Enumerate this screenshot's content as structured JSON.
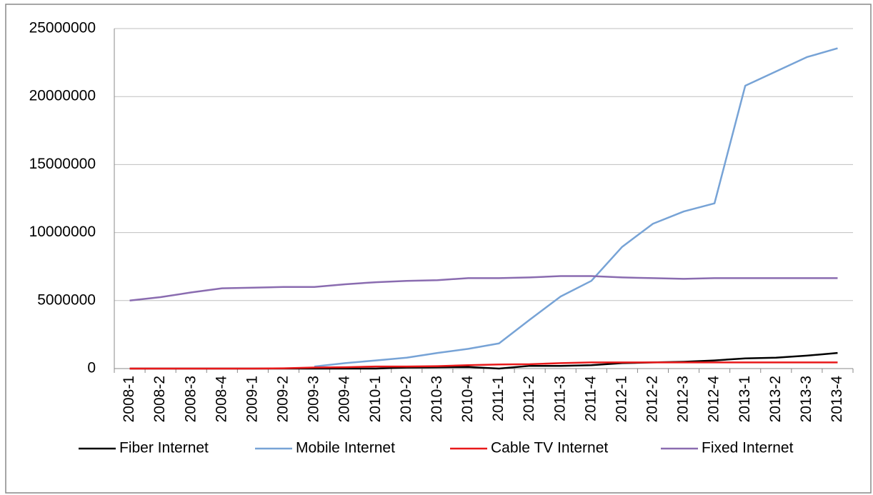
{
  "chart_data": {
    "type": "line",
    "categories": [
      "2008-1",
      "2008-2",
      "2008-3",
      "2008-4",
      "2009-1",
      "2009-2",
      "2009-3",
      "2009-4",
      "2010-1",
      "2010-2",
      "2010-3",
      "2010-4",
      "2011-1",
      "2011-2",
      "2011-3",
      "2011-4",
      "2012-1",
      "2012-2",
      "2012-3",
      "2012-4",
      "2013-1",
      "2013-2",
      "2013-3",
      "2013-4"
    ],
    "series": [
      {
        "name": "Fiber Internet",
        "color": "#000000",
        "values": [
          0,
          0,
          0,
          0,
          0,
          0,
          0,
          0,
          0,
          80000,
          100000,
          120000,
          0,
          200000,
          200000,
          250000,
          400000,
          450000,
          500000,
          600000,
          750000,
          800000,
          950000,
          1150000
        ]
      },
      {
        "name": "Mobile Internet",
        "color": "#77a3d6",
        "values": [
          null,
          null,
          null,
          null,
          null,
          null,
          150000,
          400000,
          600000,
          800000,
          1150000,
          1450000,
          1850000,
          3600000,
          5300000,
          6450000,
          8950000,
          10650000,
          11550000,
          12150000,
          20800000,
          21850000,
          22900000,
          23550000
        ]
      },
      {
        "name": "Cable TV Internet",
        "color": "#e8191a",
        "values": [
          0,
          0,
          0,
          0,
          0,
          20000,
          80000,
          100000,
          150000,
          150000,
          180000,
          250000,
          300000,
          320000,
          400000,
          450000,
          450000,
          450000,
          450000,
          450000,
          450000,
          450000,
          450000,
          450000
        ]
      },
      {
        "name": "Fixed Internet",
        "color": "#8a6cb0",
        "values": [
          5000000,
          5250000,
          5600000,
          5900000,
          5950000,
          6000000,
          6000000,
          6200000,
          6350000,
          6450000,
          6500000,
          6650000,
          6650000,
          6700000,
          6800000,
          6800000,
          6700000,
          6650000,
          6600000,
          6650000,
          6650000,
          6650000,
          6650000,
          6650000
        ]
      }
    ],
    "ylim": [
      0,
      25000000
    ],
    "yticks": [
      0,
      5000000,
      10000000,
      15000000,
      20000000,
      25000000
    ],
    "grid": true,
    "legend": "bottom"
  }
}
